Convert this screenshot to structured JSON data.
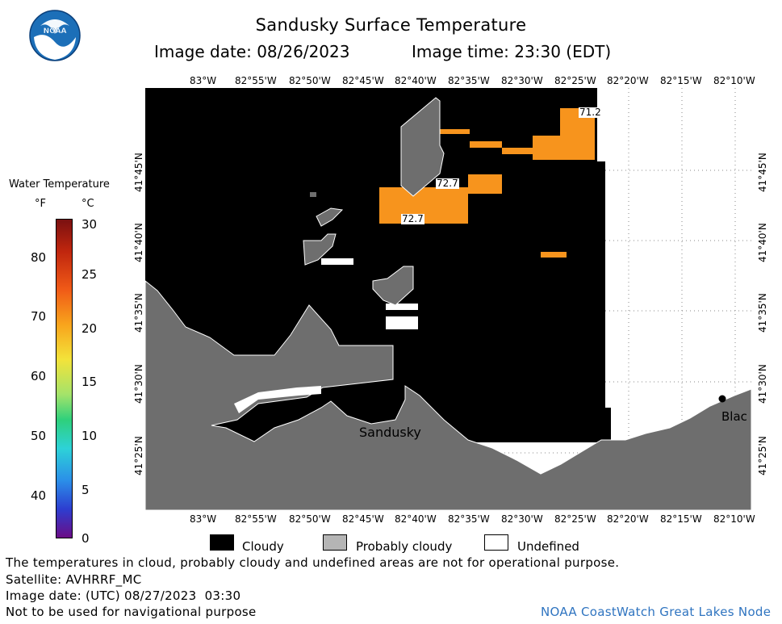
{
  "header": {
    "title": "Sandusky Surface Temperature",
    "image_date": "Image date: 08/26/2023",
    "image_time": "Image time: 23:30 (EDT)"
  },
  "map": {
    "top_lon_labels": [
      "83°W",
      "82°55'W",
      "82°50'W",
      "82°45'W",
      "82°40'W",
      "82°35'W",
      "82°30'W",
      "82°25'W",
      "82°20'W",
      "82°15'W",
      "82°10'W"
    ],
    "bottom_lon_labels": [
      "83°W",
      "82°55'W",
      "82°50'W",
      "82°45'W",
      "82°40'W",
      "82°35'W",
      "82°30'W",
      "82°25'W",
      "82°20'W",
      "82°15'W",
      "82°10'W"
    ],
    "lat_labels": [
      "41°45'N",
      "41°40'N",
      "41°35'N",
      "41°30'N",
      "41°25'N"
    ],
    "place_labels": {
      "sandusky": "Sandusky",
      "blac": "Blac"
    },
    "temperature_labels": [
      "71.2",
      "72.7",
      "72.7"
    ],
    "colors": {
      "cloudy": "#000000",
      "probably_cloudy": "#6e6e6e",
      "undefined": "#ffffff",
      "warm_water": "#f7941d"
    }
  },
  "colorbar": {
    "title": "Water Temperature",
    "unit_f": "°F",
    "unit_c": "°C",
    "f_ticks": [
      "80",
      "70",
      "60",
      "50",
      "40"
    ],
    "c_ticks": [
      "30",
      "25",
      "20",
      "15",
      "10",
      "5",
      "0"
    ]
  },
  "key": {
    "cloudy": "Cloudy",
    "probably_cloudy": "Probably cloudy",
    "undefined": "Undefined"
  },
  "footer": {
    "disclaimer": "The temperatures in cloud, probably cloudy and undefined areas are not for operational purpose.",
    "satellite": "Satellite: AVHRRF_MC",
    "utc_date": "Image date: (UTC) 08/27/2023  03:30",
    "nav_warning": "Not to be used for navigational purpose",
    "credit": "NOAA CoastWatch Great Lakes Node"
  },
  "logo": {
    "text": "NOAA"
  }
}
